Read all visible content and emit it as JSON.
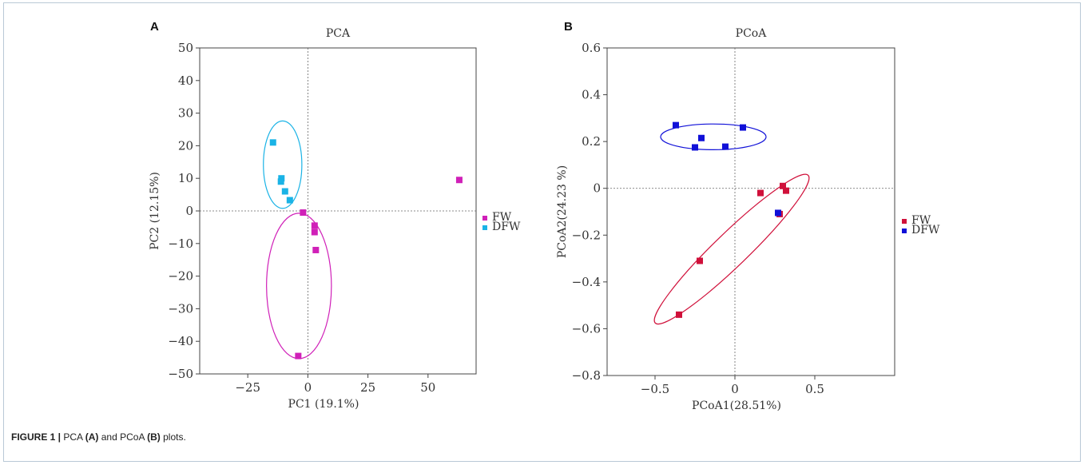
{
  "chart_data": [
    {
      "panel": "A",
      "type": "scatter",
      "title": "PCA",
      "xlabel": "PC1 (19.1%)",
      "ylabel": "PC2 (12.15%)",
      "xlim": [
        -45,
        70
      ],
      "ylim": [
        -50,
        50
      ],
      "xticks": [
        -25,
        0,
        25,
        50
      ],
      "yticks": [
        50,
        40,
        30,
        20,
        10,
        0,
        -10,
        -20,
        -30,
        -40,
        -50
      ],
      "grid": false,
      "reference_lines": "dashed lines at x=0 and y=0",
      "legend_placement": "right",
      "series": [
        {
          "name": "FW",
          "color": "#d020b8",
          "points": [
            [
              -2,
              -0.5
            ],
            [
              2.8,
              -4.5
            ],
            [
              2.8,
              -6.5
            ],
            [
              3.3,
              -12
            ],
            [
              -4,
              -44.5
            ],
            [
              63,
              9.5
            ]
          ],
          "ellipse": {
            "cx": -3.7,
            "cy": -23,
            "rx": 13.5,
            "ry": 22.3,
            "angle": 0
          }
        },
        {
          "name": "DFW",
          "color": "#1ab3e6",
          "points": [
            [
              -14.5,
              21
            ],
            [
              -11,
              10
            ],
            [
              -11.2,
              9
            ],
            [
              -9.5,
              6
            ],
            [
              -7.5,
              3.3
            ]
          ],
          "ellipse": {
            "cx": -10.5,
            "cy": 14.2,
            "rx": 8,
            "ry": 13.4,
            "angle": 0
          }
        }
      ]
    },
    {
      "panel": "B",
      "type": "scatter",
      "title": "PCoA",
      "xlabel": "PCoA1(28.51%)",
      "ylabel": "PCoA2(24.23 %)",
      "xlim": [
        -0.8,
        1.0
      ],
      "ylim": [
        -0.8,
        0.6
      ],
      "xticks": [
        -0.5,
        0,
        0.5
      ],
      "xtick_labels": [
        "-0.5",
        "0",
        "0.5"
      ],
      "yticks": [
        0.6,
        0.4,
        0.2,
        0,
        -0.2,
        -0.4,
        -0.6,
        -0.8
      ],
      "ytick_labels": [
        "0.6",
        "0.4",
        "0.2",
        "0",
        "-0.2",
        "-0.4",
        "-0.6",
        "-0.8"
      ],
      "grid": false,
      "reference_lines": "dashed lines at x=0 and y=0",
      "legend_placement": "right",
      "series": [
        {
          "name": "FW",
          "color": "#d0103a",
          "points": [
            [
              0.16,
              -0.02
            ],
            [
              0.3,
              0.01
            ],
            [
              0.32,
              -0.01
            ],
            [
              0.28,
              -0.11
            ],
            [
              -0.22,
              -0.31
            ],
            [
              -0.35,
              -0.54
            ]
          ],
          "ellipse": {
            "cx": -0.02,
            "cy": -0.26,
            "rx": 0.54,
            "ry": 0.085,
            "angle": 44
          }
        },
        {
          "name": "DFW",
          "color": "#1010d8",
          "points": [
            [
              -0.37,
              0.27
            ],
            [
              -0.21,
              0.215
            ],
            [
              -0.25,
              0.175
            ],
            [
              -0.06,
              0.178
            ],
            [
              0.05,
              0.26
            ],
            [
              0.27,
              -0.105
            ]
          ],
          "ellipse": {
            "cx": -0.135,
            "cy": 0.22,
            "rx": 0.33,
            "ry": 0.055,
            "angle": 0
          }
        }
      ]
    }
  ],
  "caption": {
    "label": "FIGURE 1 |",
    "text_1": " PCA ",
    "ref_a": "(A)",
    "text_2": " and PCoA ",
    "ref_b": "(B)",
    "text_3": " plots."
  }
}
